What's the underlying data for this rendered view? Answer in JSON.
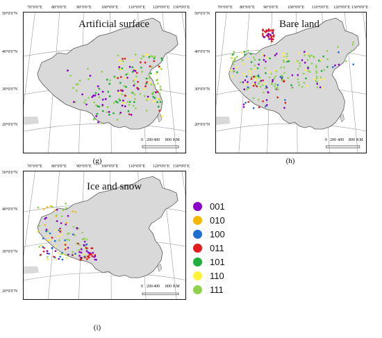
{
  "lon_labels": [
    "70°0'0\"E",
    "80°0'0\"E",
    "90°0'0\"E",
    "100°0'0\"E",
    "110°0'0\"E",
    "120°0'0\"E",
    "130°0'0\"E"
  ],
  "lat_labels": [
    "50°0'0\"N",
    "40°0'0\"N",
    "30°0'0\"N",
    "20°0'0\"N"
  ],
  "scale": {
    "ticks": [
      "0",
      "200",
      "400",
      "800"
    ],
    "unit": "KM"
  },
  "panels": [
    {
      "title": "Artificial surface",
      "label": "(g)"
    },
    {
      "title": "Bare land",
      "label": "(h)"
    },
    {
      "title": "Ice and snow",
      "label": "(i)"
    }
  ],
  "legend": [
    {
      "code": "001",
      "color": "#8b00c9"
    },
    {
      "code": "010",
      "color": "#f5b800"
    },
    {
      "code": "100",
      "color": "#1e6fd0"
    },
    {
      "code": "011",
      "color": "#e31a1c"
    },
    {
      "code": "101",
      "color": "#1fae3c"
    },
    {
      "code": "110",
      "color": "#fff23a"
    },
    {
      "code": "111",
      "color": "#8fd14f"
    }
  ],
  "colors": {
    "land": "#d9d9d9",
    "border": "#555555",
    "frame": "#111111"
  }
}
